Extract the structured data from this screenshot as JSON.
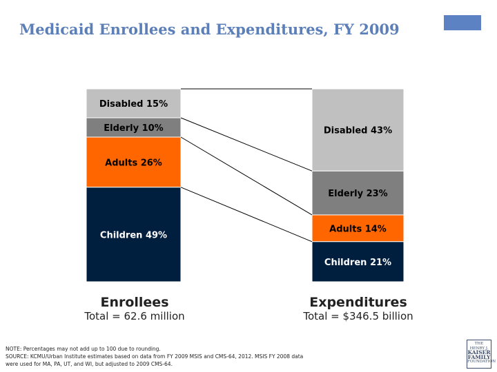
{
  "title": "Medicaid Enrollees and Expenditures, FY 2009",
  "chart_data": {
    "type": "bar",
    "stacked": true,
    "percent": true,
    "categories": [
      "Enrollees",
      "Expenditures"
    ],
    "totals": [
      "Total = 62.6 million",
      "Total = $346.5 billion"
    ],
    "series": [
      {
        "name": "Disabled",
        "values": [
          15,
          43
        ],
        "labels": [
          "Disabled 15%",
          "Disabled 43%"
        ],
        "color": "#c0c0c0"
      },
      {
        "name": "Elderly",
        "values": [
          10,
          23
        ],
        "labels": [
          "Elderly 10%",
          "Elderly 23%"
        ],
        "color": "#7f7f7f"
      },
      {
        "name": "Adults",
        "values": [
          26,
          14
        ],
        "labels": [
          "Adults 26%",
          "Adults 14%"
        ],
        "color": "#ff6600"
      },
      {
        "name": "Children",
        "values": [
          49,
          21
        ],
        "labels": [
          "Children 49%",
          "Children 21%"
        ],
        "color": "#001f3f"
      }
    ]
  },
  "colors": {
    "title": "#5c7fb8",
    "accent_box": "#5c82c4",
    "label_light": "#000000",
    "label_dark": "#ffffff"
  },
  "note": {
    "line1": "NOTE: Percentages may not add up to 100 due to rounding.",
    "line2": "SOURCE:  KCMU/Urban Institute estimates based on data from FY 2009 MSIS and CMS-64, 2012. MSIS FY 2008 data",
    "line3": "were used for MA, PA, UT, and WI, but adjusted to 2009 CMS-64."
  },
  "logo": {
    "line1": "THE HENRY J.",
    "line2": "KAISER",
    "line3": "FAMILY",
    "line4": "FOUNDATION"
  }
}
